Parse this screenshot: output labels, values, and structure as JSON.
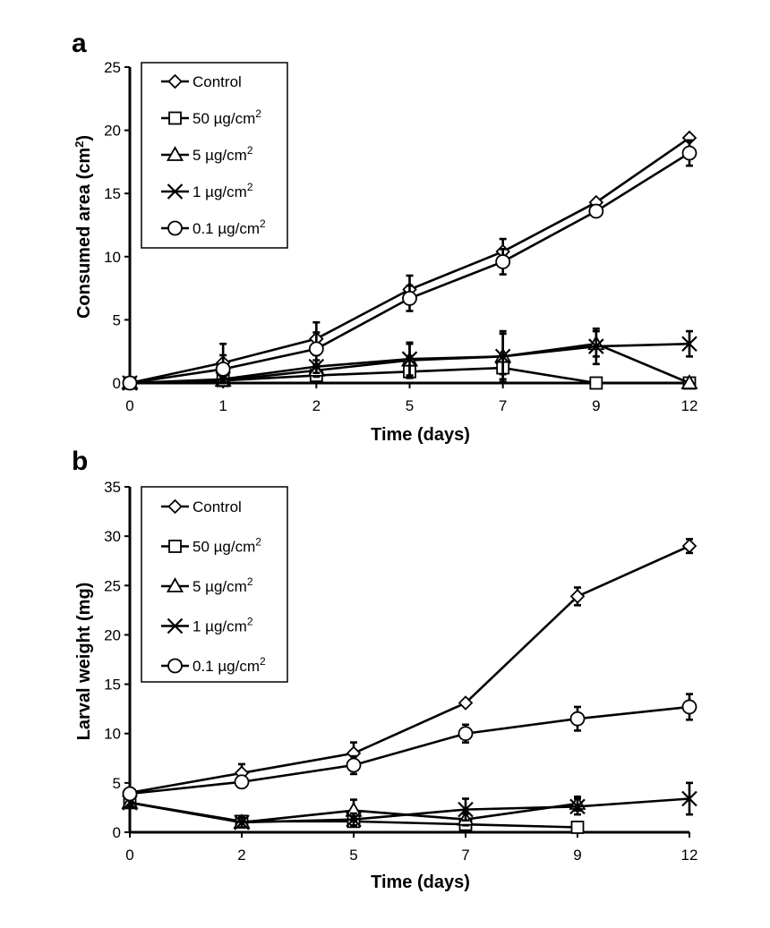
{
  "chart_data": [
    {
      "panel": "a",
      "type": "line",
      "ylabel": "Consumed area (cm²)",
      "ylabel_main": "Consumed area (cm",
      "ylabel_sup": "2",
      "ylabel_end": ")",
      "xlabel": "Time (days)",
      "categories": [
        "0",
        "1",
        "2",
        "5",
        "7",
        "9",
        "12"
      ],
      "ylim": [
        0,
        25
      ],
      "yticks": [
        0,
        5,
        10,
        15,
        20,
        25
      ],
      "legend_position": "top-left",
      "series": [
        {
          "name": "Control",
          "marker": "diamond",
          "values": [
            0,
            1.6,
            3.5,
            7.4,
            10.4,
            14.3,
            19.4
          ],
          "errors": [
            0,
            1.5,
            1.3,
            1.1,
            1.0,
            0,
            0
          ]
        },
        {
          "name": "50 µg/cm2",
          "marker": "square",
          "values": [
            0,
            0.2,
            0.6,
            0.9,
            1.2,
            0,
            0
          ],
          "errors": [
            0,
            0.2,
            0.2,
            0.5,
            0.5,
            0,
            0
          ]
        },
        {
          "name": "5 µg/cm2",
          "marker": "triangle",
          "values": [
            0,
            0.2,
            1.0,
            1.8,
            2.1,
            3.1,
            0
          ],
          "errors": [
            0,
            0.3,
            0.5,
            1.3,
            1.8,
            1.0,
            0
          ]
        },
        {
          "name": "1 µg/cm2",
          "marker": "x",
          "values": [
            0,
            0.3,
            1.3,
            1.9,
            2.1,
            2.9,
            3.1
          ],
          "errors": [
            0,
            0.3,
            0.5,
            1.3,
            2.0,
            1.4,
            1.0
          ]
        },
        {
          "name": "0.1 µg/cm2",
          "marker": "circle",
          "values": [
            0,
            1.1,
            2.7,
            6.7,
            9.6,
            13.6,
            18.2
          ],
          "errors": [
            0,
            1.1,
            1.3,
            1.0,
            1.0,
            0,
            1.0
          ]
        }
      ]
    },
    {
      "panel": "b",
      "type": "line",
      "ylabel": "Larval weight (mg)",
      "ylabel_main": "Larval weight (mg)",
      "ylabel_sup": "",
      "ylabel_end": "",
      "xlabel": "Time (days)",
      "categories": [
        "0",
        "2",
        "5",
        "7",
        "9",
        "12"
      ],
      "ylim": [
        0,
        35
      ],
      "yticks": [
        0,
        5,
        10,
        15,
        20,
        25,
        30,
        35
      ],
      "legend_position": "top-left",
      "series": [
        {
          "name": "Control",
          "marker": "diamond",
          "values": [
            4.0,
            6.0,
            8.0,
            13.1,
            23.9,
            29.0
          ],
          "errors": [
            0.4,
            0.9,
            1.1,
            0.3,
            0.9,
            0.7
          ]
        },
        {
          "name": "50 µg/cm2",
          "marker": "square",
          "values": [
            3.0,
            1.1,
            1.1,
            0.8,
            0.5,
            null
          ],
          "errors": [
            0.4,
            0.5,
            0.4,
            0.3,
            0.3,
            0
          ]
        },
        {
          "name": "5 µg/cm2",
          "marker": "triangle",
          "values": [
            3.0,
            1.0,
            2.2,
            1.3,
            2.9,
            null
          ],
          "errors": [
            0.4,
            0.5,
            1.1,
            0.6,
            0.7,
            0
          ]
        },
        {
          "name": "1 µg/cm2",
          "marker": "x",
          "values": [
            3.0,
            1.0,
            1.3,
            2.3,
            2.6,
            3.4
          ],
          "errors": [
            0.4,
            0.5,
            0.6,
            1.1,
            0.8,
            1.6
          ]
        },
        {
          "name": "0.1 µg/cm2",
          "marker": "circle",
          "values": [
            3.9,
            5.1,
            6.8,
            10.0,
            11.5,
            12.7
          ],
          "errors": [
            0.4,
            0.5,
            0.9,
            0.9,
            1.2,
            1.3
          ]
        }
      ]
    }
  ],
  "legend": [
    {
      "label": "Control",
      "sup": ""
    },
    {
      "label": "50 µg/cm",
      "sup": "2"
    },
    {
      "label": "5 µg/cm",
      "sup": "2"
    },
    {
      "label": "1 µg/cm",
      "sup": "2"
    },
    {
      "label": "0.1 µg/cm",
      "sup": "2"
    }
  ]
}
